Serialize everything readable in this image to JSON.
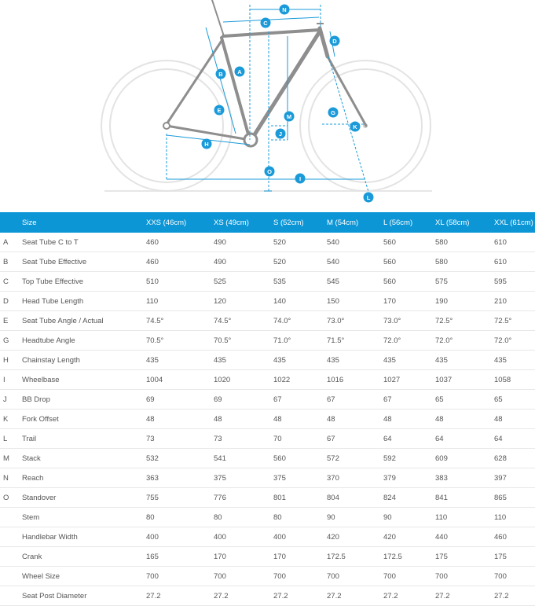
{
  "diagram": {
    "markers": [
      "A",
      "B",
      "C",
      "D",
      "E",
      "G",
      "H",
      "I",
      "J",
      "K",
      "L",
      "M",
      "N",
      "O"
    ],
    "accent_color": "#1a9ad9",
    "frame_color": "#8e8e8e",
    "wheel_color": "#e3e3e3"
  },
  "table": {
    "header_bg": "#0c96d6",
    "columns": [
      "Size",
      "XXS (46cm)",
      "XS (49cm)",
      "S (52cm)",
      "M (54cm)",
      "L (56cm)",
      "XL (58cm)",
      "XXL (61cm)"
    ],
    "rows": [
      {
        "letter": "A",
        "name": "Seat Tube C to T",
        "values": [
          "460",
          "490",
          "520",
          "540",
          "560",
          "580",
          "610"
        ]
      },
      {
        "letter": "B",
        "name": "Seat Tube Effective",
        "values": [
          "460",
          "490",
          "520",
          "540",
          "560",
          "580",
          "610"
        ]
      },
      {
        "letter": "C",
        "name": "Top Tube Effective",
        "values": [
          "510",
          "525",
          "535",
          "545",
          "560",
          "575",
          "595"
        ]
      },
      {
        "letter": "D",
        "name": "Head Tube Length",
        "values": [
          "110",
          "120",
          "140",
          "150",
          "170",
          "190",
          "210"
        ]
      },
      {
        "letter": "E",
        "name": "Seat Tube Angle / Actual",
        "values": [
          "74.5°",
          "74.5°",
          "74.0°",
          "73.0°",
          "73.0°",
          "72.5°",
          "72.5°"
        ]
      },
      {
        "letter": "G",
        "name": "Headtube Angle",
        "values": [
          "70.5°",
          "70.5°",
          "71.0°",
          "71.5°",
          "72.0°",
          "72.0°",
          "72.0°"
        ]
      },
      {
        "letter": "H",
        "name": "Chainstay Length",
        "values": [
          "435",
          "435",
          "435",
          "435",
          "435",
          "435",
          "435"
        ]
      },
      {
        "letter": "I",
        "name": "Wheelbase",
        "values": [
          "1004",
          "1020",
          "1022",
          "1016",
          "1027",
          "1037",
          "1058"
        ]
      },
      {
        "letter": "J",
        "name": "BB Drop",
        "values": [
          "69",
          "69",
          "67",
          "67",
          "67",
          "65",
          "65"
        ]
      },
      {
        "letter": "K",
        "name": "Fork Offset",
        "values": [
          "48",
          "48",
          "48",
          "48",
          "48",
          "48",
          "48"
        ]
      },
      {
        "letter": "L",
        "name": "Trail",
        "values": [
          "73",
          "73",
          "70",
          "67",
          "64",
          "64",
          "64"
        ]
      },
      {
        "letter": "M",
        "name": "Stack",
        "values": [
          "532",
          "541",
          "560",
          "572",
          "592",
          "609",
          "628"
        ]
      },
      {
        "letter": "N",
        "name": "Reach",
        "values": [
          "363",
          "375",
          "375",
          "370",
          "379",
          "383",
          "397"
        ]
      },
      {
        "letter": "O",
        "name": "Standover",
        "values": [
          "755",
          "776",
          "801",
          "804",
          "824",
          "841",
          "865"
        ]
      },
      {
        "letter": "",
        "name": "Stem",
        "values": [
          "80",
          "80",
          "80",
          "90",
          "90",
          "110",
          "110"
        ]
      },
      {
        "letter": "",
        "name": "Handlebar Width",
        "values": [
          "400",
          "400",
          "400",
          "420",
          "420",
          "440",
          "460"
        ]
      },
      {
        "letter": "",
        "name": "Crank",
        "values": [
          "165",
          "170",
          "170",
          "172.5",
          "172.5",
          "175",
          "175"
        ]
      },
      {
        "letter": "",
        "name": "Wheel Size",
        "values": [
          "700",
          "700",
          "700",
          "700",
          "700",
          "700",
          "700"
        ]
      },
      {
        "letter": "",
        "name": "Seat Post Diameter",
        "values": [
          "27.2",
          "27.2",
          "27.2",
          "27.2",
          "27.2",
          "27.2",
          "27.2"
        ]
      }
    ]
  }
}
